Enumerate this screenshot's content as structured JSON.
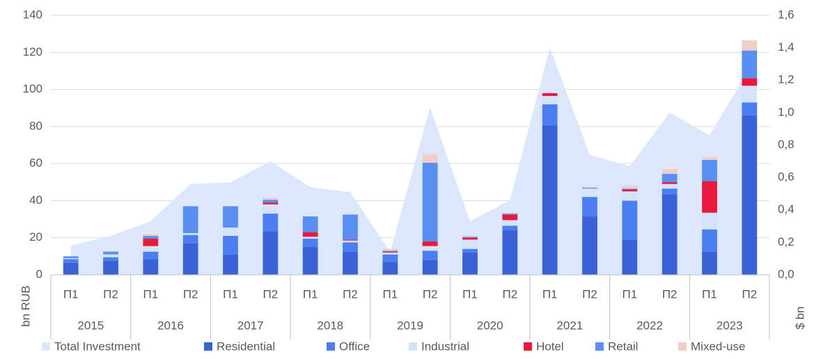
{
  "chart_data": {
    "type": "bar",
    "stacked": true,
    "y_label": "bn RUB",
    "y2_label": "$ bn",
    "categories": [
      "П1",
      "П2",
      "П1",
      "П2",
      "П1",
      "П2",
      "П1",
      "П2",
      "П1",
      "П2",
      "П1",
      "П2",
      "П1",
      "П2",
      "П1",
      "П2",
      "П1",
      "П2"
    ],
    "years": [
      "2015",
      "2016",
      "2017",
      "2018",
      "2019",
      "2020",
      "2021",
      "2022",
      "2023"
    ],
    "ylim": [
      0,
      140
    ],
    "yticks": [
      0,
      20,
      40,
      60,
      80,
      100,
      120,
      140
    ],
    "y2lim": [
      0,
      1.6
    ],
    "y2ticks": [
      {
        "value": 0,
        "label": "0,0"
      },
      {
        "value": 0.2,
        "label": "0,2"
      },
      {
        "value": 0.4,
        "label": "0,4"
      },
      {
        "value": 0.6,
        "label": "0,6"
      },
      {
        "value": 0.8,
        "label": "0,8"
      },
      {
        "value": 1.0,
        "label": "1,0"
      },
      {
        "value": 1.2,
        "label": "1,2"
      },
      {
        "value": 1.4,
        "label": "1,4"
      },
      {
        "value": 1.6,
        "label": "1,6"
      }
    ],
    "series": [
      {
        "name": "Total Investment",
        "type": "area",
        "axis": "y2",
        "color": "#dce7fb",
        "values": [
          0.18,
          0.24,
          0.33,
          0.56,
          0.57,
          0.7,
          0.54,
          0.51,
          0.14,
          1.03,
          0.33,
          0.46,
          1.4,
          0.74,
          0.67,
          1.0,
          0.86,
          1.27
        ]
      },
      {
        "name": "Residential",
        "color": "#3a62d6",
        "values": [
          6.5,
          7.5,
          8.5,
          17,
          11,
          23.5,
          15,
          12.5,
          7,
          8,
          12,
          24,
          80.5,
          31.5,
          19,
          43.5,
          12.5,
          86
        ]
      },
      {
        "name": "Office",
        "color": "#4b7ef0",
        "values": [
          2,
          2,
          4,
          4.5,
          10,
          9.5,
          4.5,
          5,
          4,
          5,
          2,
          2.5,
          11.5,
          10.5,
          21,
          3,
          12,
          7
        ]
      },
      {
        "name": "Industrial",
        "color": "#d4e2fa",
        "values": [
          0.5,
          1.5,
          3,
          1,
          4.5,
          5,
          1,
          1,
          1,
          2.5,
          5,
          3,
          4.5,
          4.5,
          5,
          2.5,
          9,
          9
        ]
      },
      {
        "name": "Hotel",
        "color": "#e8193c",
        "values": [
          0,
          0,
          4,
          0,
          0,
          1,
          2.5,
          0.5,
          0.5,
          2.5,
          1,
          3,
          1.5,
          0,
          1,
          1,
          17,
          4
        ]
      },
      {
        "name": "Retail",
        "color": "#5a8ff2",
        "values": [
          1,
          1.5,
          1.5,
          14.5,
          11.5,
          1.5,
          8.5,
          13.5,
          0.5,
          42.5,
          0.5,
          0.5,
          0,
          0.5,
          0.5,
          4.5,
          11.5,
          15
        ]
      },
      {
        "name": "Mixed-use",
        "color": "#f0cdc6",
        "values": [
          0,
          0.5,
          1,
          0,
          0,
          1,
          0,
          0,
          1,
          4.5,
          0.5,
          0.5,
          0,
          0.5,
          1.5,
          2.5,
          1.5,
          5.5
        ]
      }
    ]
  }
}
